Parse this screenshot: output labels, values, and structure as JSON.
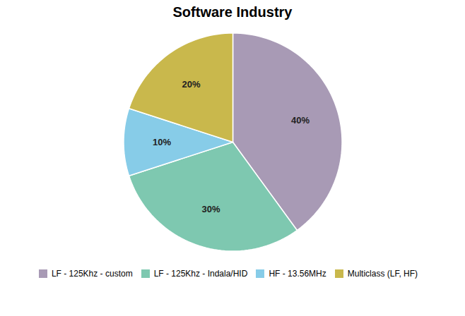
{
  "chart_data": {
    "type": "pie",
    "title": "Software Industry",
    "categories": [
      "LF - 125Khz - custom",
      "LF - 125Khz - Indala/HID",
      "HF - 13.56MHz",
      "Multiclass (LF, HF)"
    ],
    "values": [
      40,
      30,
      10,
      20
    ],
    "value_labels": [
      "40%",
      "30%",
      "10%",
      "20%"
    ],
    "colors": [
      "#a89ab5",
      "#7ec8b0",
      "#87cce8",
      "#c9b84c"
    ],
    "data_labels": true,
    "legend": "bottom"
  }
}
